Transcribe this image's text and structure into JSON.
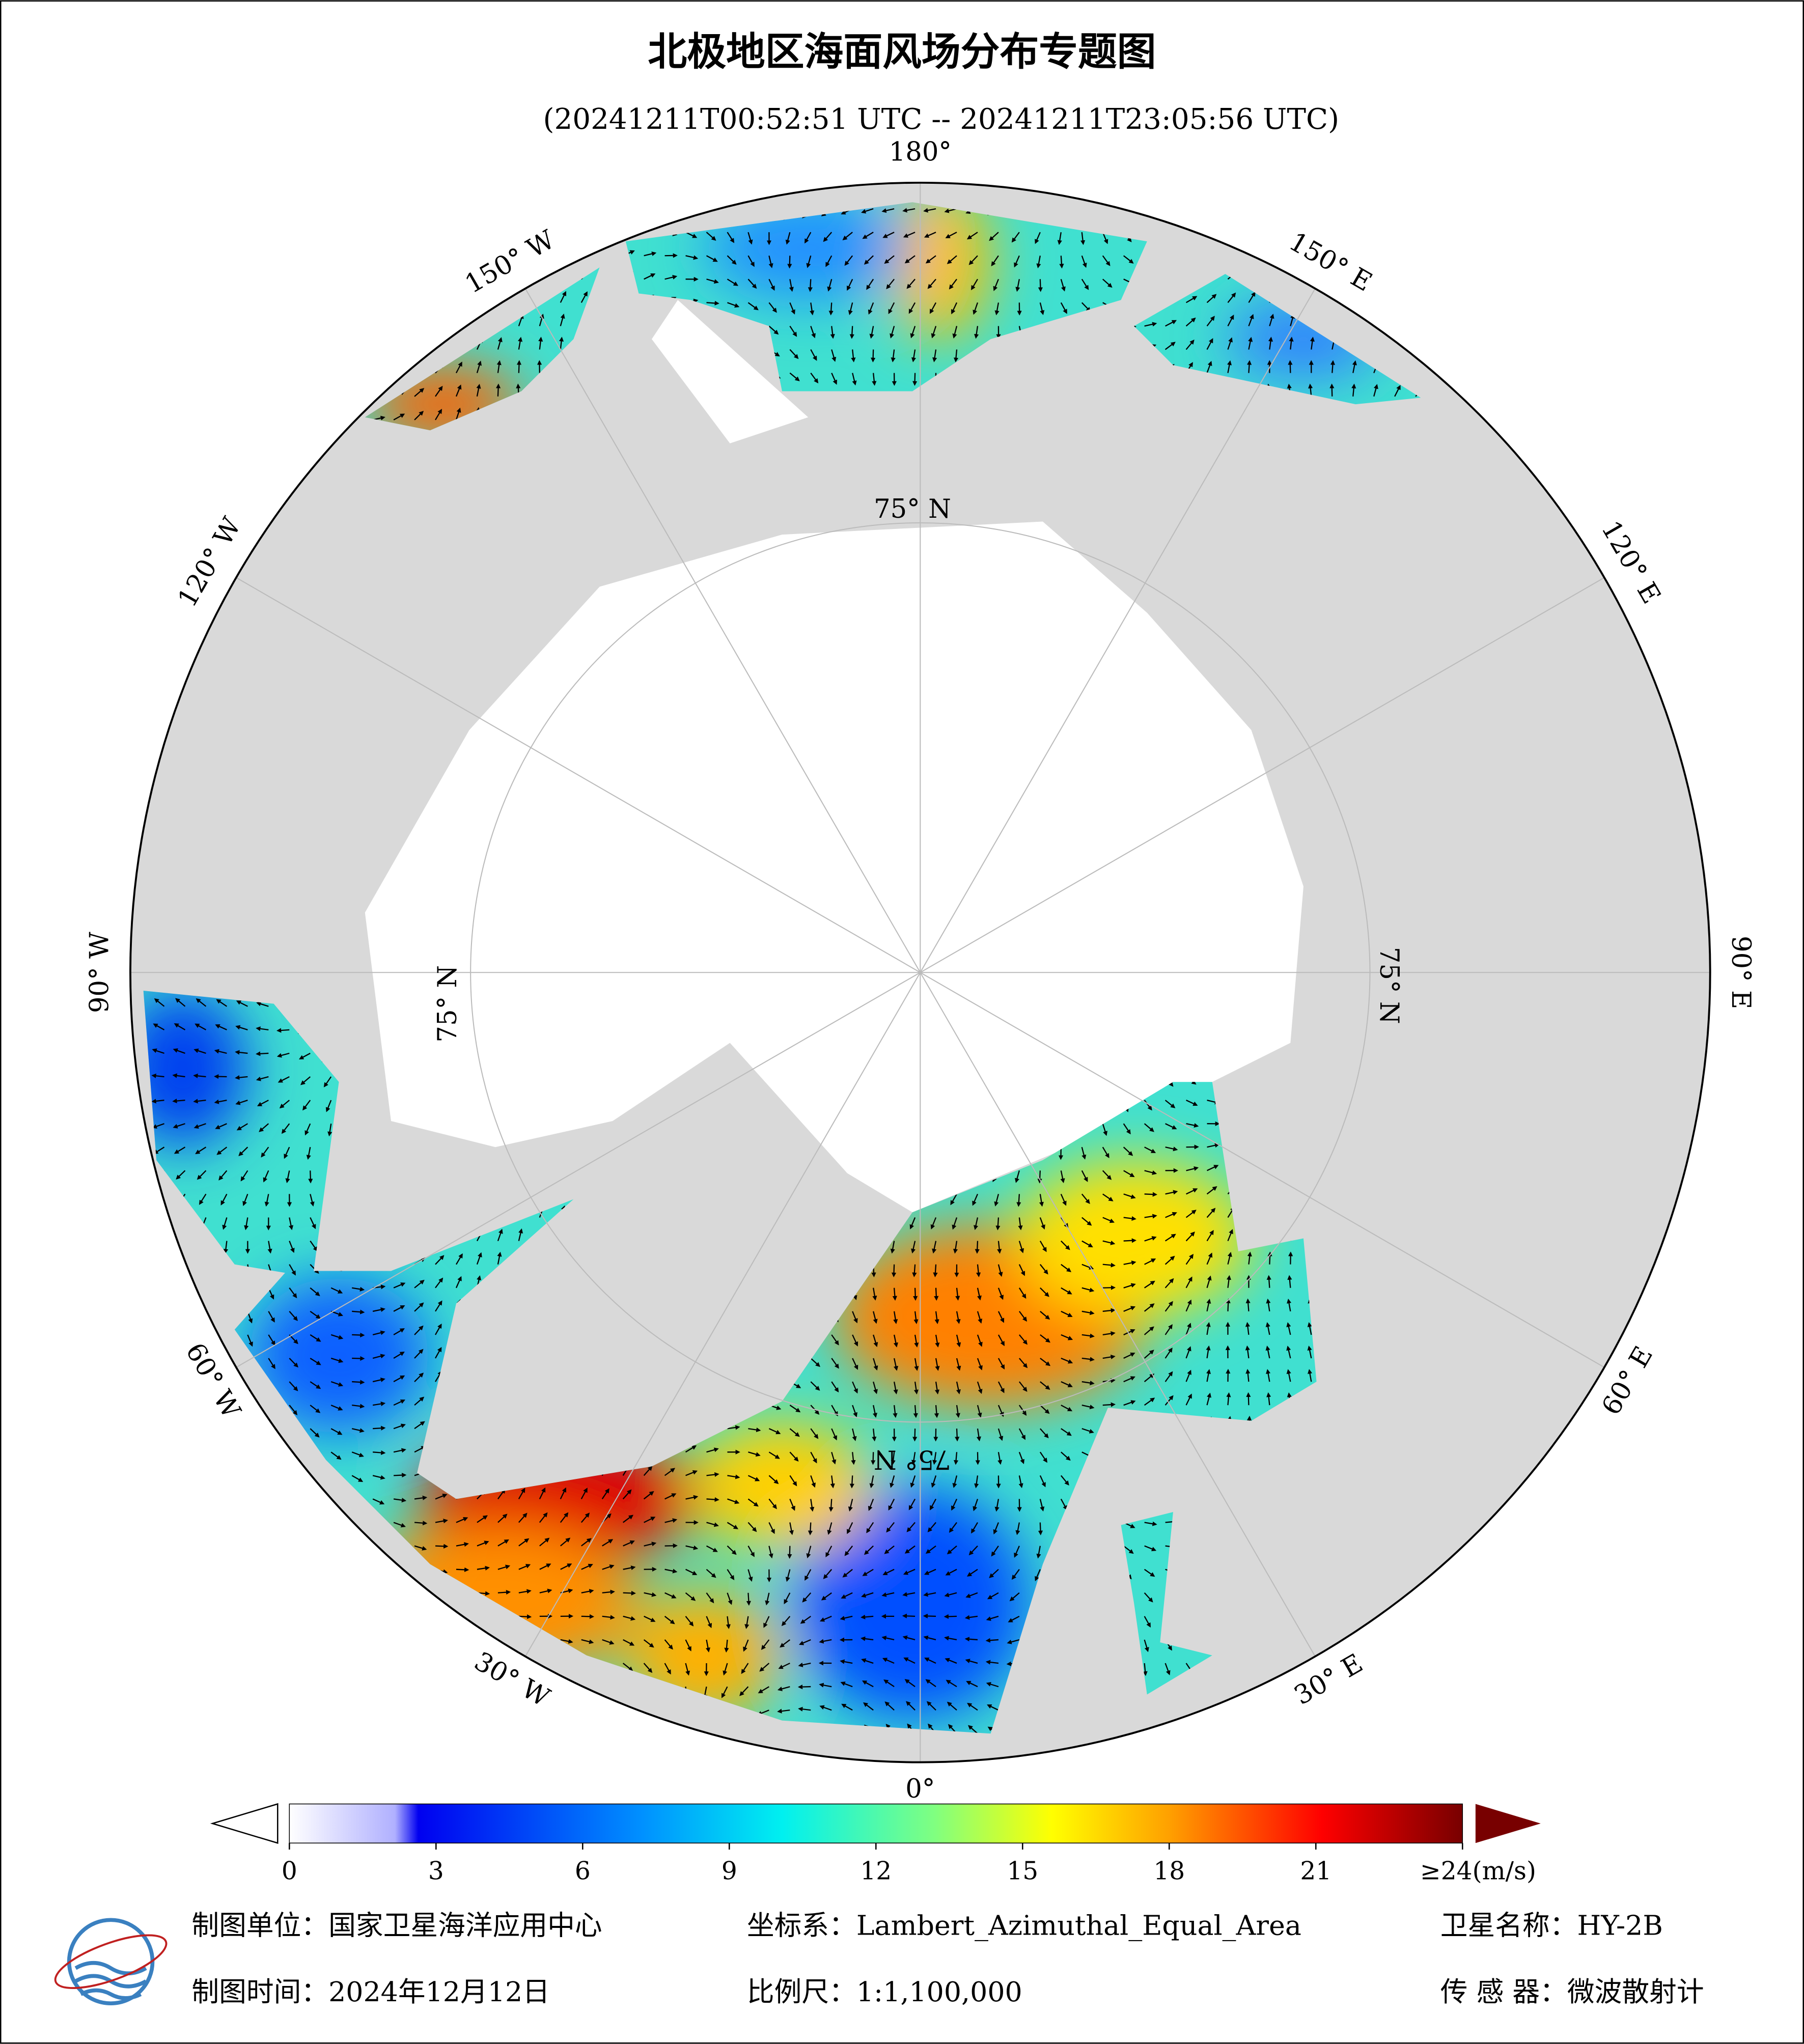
{
  "header": {
    "title": "北极地区海面风场分布专题图",
    "subtitle": "(20241211T00:52:51 UTC -- 20241211T23:05:56 UTC)"
  },
  "map": {
    "lon_labels": [
      "180°",
      "150° W",
      "120° W",
      "90° W",
      "60° W",
      "30° W",
      "0°",
      "30° E",
      "60° E",
      "90° E",
      "120° E",
      "150° E"
    ],
    "lat_label": "75° N"
  },
  "colorbar": {
    "range": [
      0,
      24
    ],
    "ticks": [
      0,
      3,
      6,
      9,
      12,
      15,
      18,
      21,
      {
        "value": 24,
        "label": "≥24(m/s)"
      }
    ]
  },
  "footer": {
    "unit": "制图单位：国家卫星海洋应用中心",
    "crs": "坐标系：Lambert_Azimuthal_Equal_Area",
    "satellite": "卫星名称：HY-2B",
    "date": "制图时间：2024年12月12日",
    "scale": "比例尺：1:1,100,000",
    "sensor": "传 感 器：微波散射计"
  }
}
